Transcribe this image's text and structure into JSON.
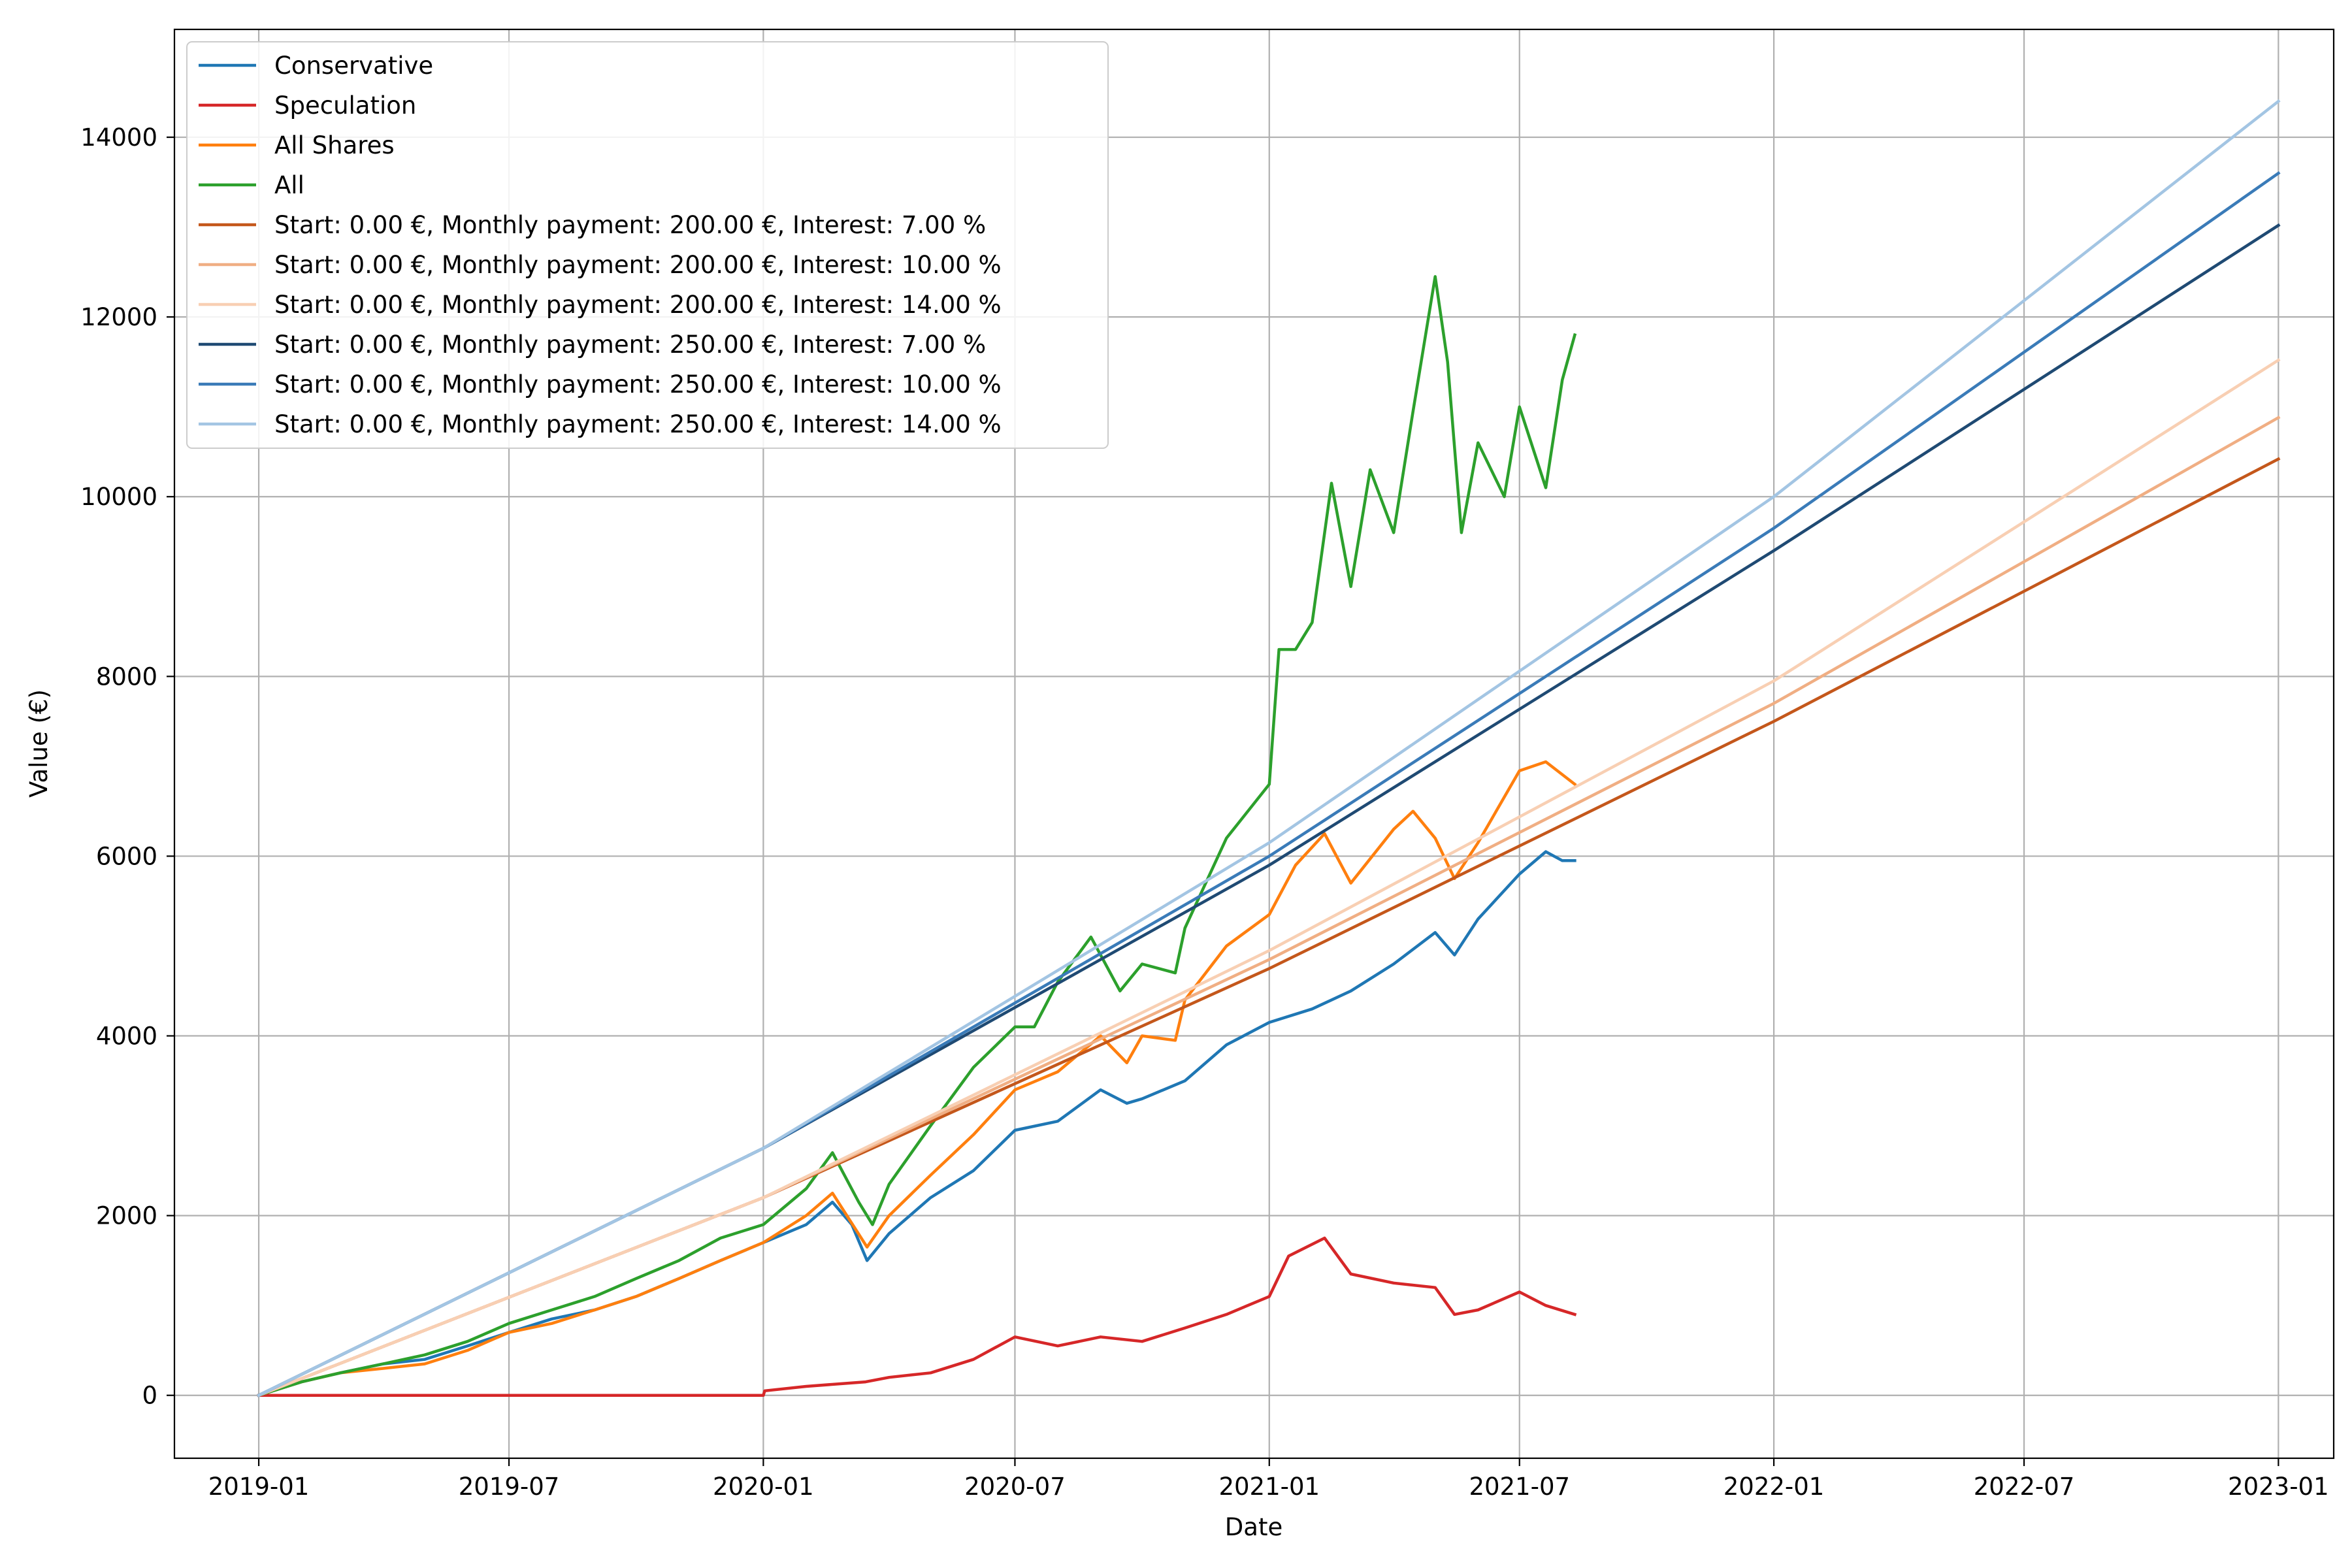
{
  "chart_data": {
    "type": "line",
    "title": "",
    "xlabel": "Date",
    "ylabel": "Value (€)",
    "xlim": [
      "2018-11-01",
      "2023-02-10"
    ],
    "ylim": [
      -700,
      15200
    ],
    "grid": true,
    "legend_position": "top-left",
    "x_ticks": [
      "2019-01",
      "2019-07",
      "2020-01",
      "2020-07",
      "2021-01",
      "2021-07",
      "2022-01",
      "2022-07",
      "2023-01"
    ],
    "y_ticks": [
      0,
      2000,
      4000,
      6000,
      8000,
      10000,
      12000,
      14000
    ],
    "series": [
      {
        "name": "Conservative",
        "color": "#1f77b4",
        "width": 4.5,
        "points": [
          [
            "2019-01-01",
            0
          ],
          [
            "2019-02-01",
            150
          ],
          [
            "2019-03-01",
            250
          ],
          [
            "2019-04-01",
            350
          ],
          [
            "2019-05-01",
            400
          ],
          [
            "2019-06-01",
            550
          ],
          [
            "2019-07-01",
            700
          ],
          [
            "2019-08-01",
            850
          ],
          [
            "2019-09-01",
            950
          ],
          [
            "2019-10-01",
            1100
          ],
          [
            "2019-11-01",
            1300
          ],
          [
            "2019-12-01",
            1500
          ],
          [
            "2020-01-01",
            1700
          ],
          [
            "2020-02-01",
            1900
          ],
          [
            "2020-02-20",
            2150
          ],
          [
            "2020-03-05",
            1900
          ],
          [
            "2020-03-16",
            1500
          ],
          [
            "2020-04-01",
            1800
          ],
          [
            "2020-05-01",
            2200
          ],
          [
            "2020-06-01",
            2500
          ],
          [
            "2020-07-01",
            2950
          ],
          [
            "2020-08-01",
            3050
          ],
          [
            "2020-09-01",
            3400
          ],
          [
            "2020-09-20",
            3250
          ],
          [
            "2020-10-01",
            3300
          ],
          [
            "2020-11-01",
            3500
          ],
          [
            "2020-12-01",
            3900
          ],
          [
            "2021-01-01",
            4150
          ],
          [
            "2021-02-01",
            4300
          ],
          [
            "2021-03-01",
            4500
          ],
          [
            "2021-04-01",
            4800
          ],
          [
            "2021-05-01",
            5150
          ],
          [
            "2021-05-15",
            4900
          ],
          [
            "2021-06-01",
            5300
          ],
          [
            "2021-07-01",
            5800
          ],
          [
            "2021-07-20",
            6050
          ],
          [
            "2021-08-01",
            5950
          ],
          [
            "2021-08-10",
            5950
          ]
        ]
      },
      {
        "name": "Speculation",
        "color": "#d62728",
        "width": 4.5,
        "points": [
          [
            "2019-01-01",
            0
          ],
          [
            "2020-01-01",
            0
          ],
          [
            "2020-01-02",
            50
          ],
          [
            "2020-02-01",
            100
          ],
          [
            "2020-03-15",
            150
          ],
          [
            "2020-04-01",
            200
          ],
          [
            "2020-05-01",
            250
          ],
          [
            "2020-06-01",
            400
          ],
          [
            "2020-07-01",
            650
          ],
          [
            "2020-08-01",
            550
          ],
          [
            "2020-09-01",
            650
          ],
          [
            "2020-10-01",
            600
          ],
          [
            "2020-11-01",
            750
          ],
          [
            "2020-12-01",
            900
          ],
          [
            "2021-01-01",
            1100
          ],
          [
            "2021-01-15",
            1550
          ],
          [
            "2021-02-10",
            1750
          ],
          [
            "2021-03-01",
            1350
          ],
          [
            "2021-04-01",
            1250
          ],
          [
            "2021-05-01",
            1200
          ],
          [
            "2021-05-15",
            900
          ],
          [
            "2021-06-01",
            950
          ],
          [
            "2021-07-01",
            1150
          ],
          [
            "2021-07-20",
            1000
          ],
          [
            "2021-08-10",
            900
          ]
        ]
      },
      {
        "name": "All Shares",
        "color": "#ff7f0e",
        "width": 4.5,
        "points": [
          [
            "2019-01-01",
            0
          ],
          [
            "2019-02-01",
            150
          ],
          [
            "2019-03-01",
            250
          ],
          [
            "2019-04-01",
            300
          ],
          [
            "2019-05-01",
            350
          ],
          [
            "2019-06-01",
            500
          ],
          [
            "2019-07-01",
            700
          ],
          [
            "2019-08-01",
            800
          ],
          [
            "2019-09-01",
            950
          ],
          [
            "2019-10-01",
            1100
          ],
          [
            "2019-11-01",
            1300
          ],
          [
            "2019-12-01",
            1500
          ],
          [
            "2020-01-01",
            1700
          ],
          [
            "2020-02-01",
            2000
          ],
          [
            "2020-02-20",
            2250
          ],
          [
            "2020-03-16",
            1650
          ],
          [
            "2020-04-01",
            2000
          ],
          [
            "2020-05-01",
            2450
          ],
          [
            "2020-06-01",
            2900
          ],
          [
            "2020-07-01",
            3400
          ],
          [
            "2020-08-01",
            3600
          ],
          [
            "2020-09-01",
            4000
          ],
          [
            "2020-09-20",
            3700
          ],
          [
            "2020-10-01",
            4000
          ],
          [
            "2020-10-25",
            3950
          ],
          [
            "2020-11-01",
            4400
          ],
          [
            "2020-12-01",
            5000
          ],
          [
            "2021-01-01",
            5350
          ],
          [
            "2021-01-20",
            5900
          ],
          [
            "2021-02-10",
            6250
          ],
          [
            "2021-03-01",
            5700
          ],
          [
            "2021-04-01",
            6300
          ],
          [
            "2021-04-15",
            6500
          ],
          [
            "2021-05-01",
            6200
          ],
          [
            "2021-05-15",
            5750
          ],
          [
            "2021-06-01",
            6150
          ],
          [
            "2021-07-01",
            6950
          ],
          [
            "2021-07-20",
            7050
          ],
          [
            "2021-08-10",
            6800
          ]
        ]
      },
      {
        "name": "All",
        "color": "#2ca02c",
        "width": 4.5,
        "points": [
          [
            "2019-01-01",
            0
          ],
          [
            "2019-02-01",
            150
          ],
          [
            "2019-03-01",
            250
          ],
          [
            "2019-04-01",
            350
          ],
          [
            "2019-05-01",
            450
          ],
          [
            "2019-06-01",
            600
          ],
          [
            "2019-07-01",
            800
          ],
          [
            "2019-08-01",
            950
          ],
          [
            "2019-09-01",
            1100
          ],
          [
            "2019-10-01",
            1300
          ],
          [
            "2019-11-01",
            1500
          ],
          [
            "2019-12-01",
            1750
          ],
          [
            "2020-01-01",
            1900
          ],
          [
            "2020-02-01",
            2300
          ],
          [
            "2020-02-20",
            2700
          ],
          [
            "2020-03-10",
            2150
          ],
          [
            "2020-03-20",
            1900
          ],
          [
            "2020-04-01",
            2350
          ],
          [
            "2020-05-01",
            3000
          ],
          [
            "2020-06-01",
            3650
          ],
          [
            "2020-07-01",
            4100
          ],
          [
            "2020-07-15",
            4100
          ],
          [
            "2020-08-01",
            4600
          ],
          [
            "2020-08-25",
            5100
          ],
          [
            "2020-09-15",
            4500
          ],
          [
            "2020-10-01",
            4800
          ],
          [
            "2020-10-25",
            4700
          ],
          [
            "2020-11-01",
            5200
          ],
          [
            "2020-12-01",
            6200
          ],
          [
            "2021-01-01",
            6800
          ],
          [
            "2021-01-08",
            8300
          ],
          [
            "2021-01-20",
            8300
          ],
          [
            "2021-02-01",
            8600
          ],
          [
            "2021-02-15",
            10150
          ],
          [
            "2021-03-01",
            9000
          ],
          [
            "2021-03-15",
            10300
          ],
          [
            "2021-04-01",
            9600
          ],
          [
            "2021-04-15",
            10950
          ],
          [
            "2021-05-01",
            12450
          ],
          [
            "2021-05-10",
            11500
          ],
          [
            "2021-05-20",
            9600
          ],
          [
            "2021-06-01",
            10600
          ],
          [
            "2021-06-20",
            10000
          ],
          [
            "2021-07-01",
            11000
          ],
          [
            "2021-07-20",
            10100
          ],
          [
            "2021-08-01",
            11300
          ],
          [
            "2021-08-10",
            11800
          ]
        ]
      },
      {
        "name": "Start: 0.00 €, Monthly payment: 200.00 €, Interest: 7.00 %",
        "color": "#c4571b",
        "width": 4.5,
        "points": [
          [
            "2019-01-01",
            0
          ],
          [
            "2020-01-01",
            2200
          ],
          [
            "2021-01-01",
            4750
          ],
          [
            "2022-01-01",
            7500
          ],
          [
            "2023-01-01",
            10420
          ]
        ]
      },
      {
        "name": "Start: 0.00 €, Monthly payment: 200.00 €, Interest: 10.00 %",
        "color": "#f0ae83",
        "width": 4.5,
        "points": [
          [
            "2019-01-01",
            0
          ],
          [
            "2020-01-01",
            2200
          ],
          [
            "2021-01-01",
            4850
          ],
          [
            "2022-01-01",
            7700
          ],
          [
            "2023-01-01",
            10880
          ]
        ]
      },
      {
        "name": "Start: 0.00 €, Monthly payment: 200.00 €, Interest: 14.00 %",
        "color": "#f8cfb3",
        "width": 4.5,
        "points": [
          [
            "2019-01-01",
            0
          ],
          [
            "2020-01-01",
            2200
          ],
          [
            "2021-01-01",
            4950
          ],
          [
            "2022-01-01",
            7950
          ],
          [
            "2023-01-01",
            11520
          ]
        ]
      },
      {
        "name": "Start: 0.00 €, Monthly payment: 250.00 €, Interest: 7.00 %",
        "color": "#1f4a73",
        "width": 4.5,
        "points": [
          [
            "2019-01-01",
            0
          ],
          [
            "2020-01-01",
            2750
          ],
          [
            "2021-01-01",
            5900
          ],
          [
            "2022-01-01",
            9400
          ],
          [
            "2023-01-01",
            13020
          ]
        ]
      },
      {
        "name": "Start: 0.00 €, Monthly payment: 250.00 €, Interest: 10.00 %",
        "color": "#3a7bb8",
        "width": 4.5,
        "points": [
          [
            "2019-01-01",
            0
          ],
          [
            "2020-01-01",
            2750
          ],
          [
            "2021-01-01",
            6000
          ],
          [
            "2022-01-01",
            9650
          ],
          [
            "2023-01-01",
            13600
          ]
        ]
      },
      {
        "name": "Start: 0.00 €, Monthly payment: 250.00 €, Interest: 14.00 %",
        "color": "#a3c5e3",
        "width": 4.5,
        "points": [
          [
            "2019-01-01",
            0
          ],
          [
            "2020-01-01",
            2750
          ],
          [
            "2021-01-01",
            6150
          ],
          [
            "2022-01-01",
            10000
          ],
          [
            "2023-01-01",
            14400
          ]
        ]
      }
    ]
  }
}
